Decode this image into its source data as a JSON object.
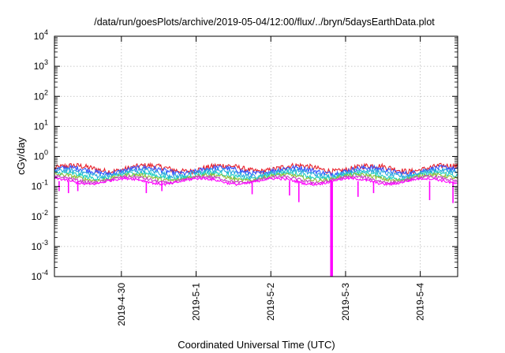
{
  "chart_data": {
    "type": "line",
    "title": "/data/run/goesPlots/archive/2019-05-04/12:00/flux/../bryn/5daysEarthData.plot",
    "xlabel": "Coordinated Universal Time (UTC)",
    "ylabel": "cGy/day",
    "yscale": "log",
    "ylim": [
      0.0001,
      10000
    ],
    "y_ticks": [
      {
        "mantissa": "10",
        "exp": "-4"
      },
      {
        "mantissa": "10",
        "exp": "-3"
      },
      {
        "mantissa": "10",
        "exp": "-2"
      },
      {
        "mantissa": "10",
        "exp": "-1"
      },
      {
        "mantissa": "10",
        "exp": "0"
      },
      {
        "mantissa": "10",
        "exp": "1"
      },
      {
        "mantissa": "10",
        "exp": "2"
      },
      {
        "mantissa": "10",
        "exp": "3"
      },
      {
        "mantissa": "10",
        "exp": "4"
      }
    ],
    "xlim": [
      "2019-04-29 02:30",
      "2019-05-04 12:00"
    ],
    "x_ticks": [
      {
        "label": "2019-4-30",
        "value": "2019-04-30 00:00"
      },
      {
        "label": "2019-5-1",
        "value": "2019-05-01 00:00"
      },
      {
        "label": "2019-5-2",
        "value": "2019-05-02 00:00"
      },
      {
        "label": "2019-5-3",
        "value": "2019-05-03 00:00"
      },
      {
        "label": "2019-5-4",
        "value": "2019-05-04 00:00"
      }
    ],
    "grid": true,
    "series": [
      {
        "color": "#e8202a",
        "base": 0.4,
        "noise": 0.22
      },
      {
        "color": "#3355ff",
        "base": 0.34,
        "noise": 0.2
      },
      {
        "color": "#29a8e0",
        "base": 0.28,
        "noise": 0.18
      },
      {
        "color": "#1ecfc0",
        "base": 0.23,
        "noise": 0.16
      },
      {
        "color": "#8fbf3a",
        "base": 0.2,
        "noise": 0.14
      },
      {
        "color": "#c83cc8",
        "base": 0.17,
        "noise": 0.12
      },
      {
        "color": "#ff00ff",
        "base": 0.15,
        "noise": 0.1
      }
    ],
    "dropouts": [
      {
        "x": "2019-04-29 04:00",
        "y": 0.07
      },
      {
        "x": "2019-04-29 07:00",
        "y": 0.06
      },
      {
        "x": "2019-04-29 10:00",
        "y": 0.07
      },
      {
        "x": "2019-04-30 08:00",
        "y": 0.06
      },
      {
        "x": "2019-04-30 13:00",
        "y": 0.07
      },
      {
        "x": "2019-05-01 18:00",
        "y": 0.055
      },
      {
        "x": "2019-05-02 06:00",
        "y": 0.05
      },
      {
        "x": "2019-05-02 09:00",
        "y": 0.03
      },
      {
        "x": "2019-05-02 19:30",
        "y": 0.0001
      },
      {
        "x": "2019-05-03 04:00",
        "y": 0.045
      },
      {
        "x": "2019-05-03 09:00",
        "y": 0.06
      },
      {
        "x": "2019-05-04 03:00",
        "y": 0.035
      },
      {
        "x": "2019-05-04 10:30",
        "y": 0.028
      }
    ]
  }
}
